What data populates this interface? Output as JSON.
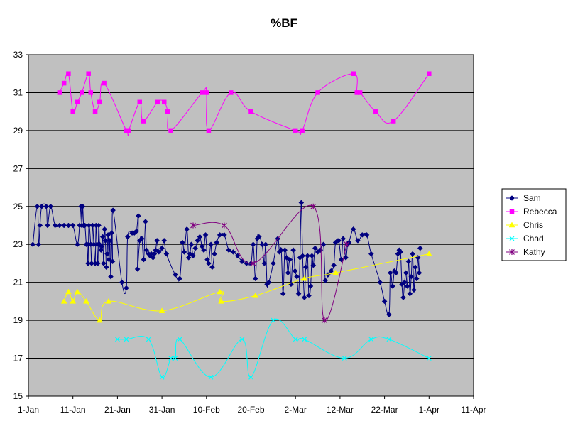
{
  "chart_data": {
    "type": "line",
    "title": "%BF",
    "xlabel": "",
    "ylabel": "",
    "x_axis": {
      "min": "1-Jan",
      "max": "11-Apr",
      "tick_labels": [
        "1-Jan",
        "11-Jan",
        "21-Jan",
        "31-Jan",
        "10-Feb",
        "20-Feb",
        "2-Mar",
        "12-Mar",
        "22-Mar",
        "1-Apr",
        "11-Apr"
      ],
      "tick_days": [
        0,
        10,
        20,
        30,
        40,
        50,
        60,
        70,
        80,
        90,
        100
      ]
    },
    "y_axis": {
      "min": 15,
      "max": 33,
      "ticks": [
        15,
        17,
        19,
        21,
        23,
        25,
        27,
        29,
        31,
        33
      ]
    },
    "grid": true,
    "plot_background": "#c0c0c0",
    "legend_position": "right",
    "series": [
      {
        "name": "Sam",
        "color": "#000080",
        "marker": "diamond",
        "points": [
          [
            1,
            23
          ],
          [
            2,
            25
          ],
          [
            2.3,
            23
          ],
          [
            2.6,
            24
          ],
          [
            3,
            25
          ],
          [
            4,
            25
          ],
          [
            4.3,
            24
          ],
          [
            5,
            25
          ],
          [
            6,
            24
          ],
          [
            7,
            24
          ],
          [
            8,
            24
          ],
          [
            9,
            24
          ],
          [
            10,
            24
          ],
          [
            11,
            23
          ],
          [
            11.5,
            24
          ],
          [
            11.8,
            25
          ],
          [
            12,
            24
          ],
          [
            12.2,
            25
          ],
          [
            12.4,
            24
          ],
          [
            12.7,
            24
          ],
          [
            13,
            23
          ],
          [
            13.2,
            23
          ],
          [
            13.4,
            22
          ],
          [
            13.6,
            24
          ],
          [
            14,
            23
          ],
          [
            14.2,
            22
          ],
          [
            14.4,
            24
          ],
          [
            14.7,
            23
          ],
          [
            15,
            22
          ],
          [
            15.2,
            24
          ],
          [
            15.4,
            23
          ],
          [
            15.6,
            22
          ],
          [
            15.8,
            24
          ],
          [
            16,
            23
          ],
          [
            16.3,
            22.7
          ],
          [
            16.5,
            22.9
          ],
          [
            16.7,
            23.4
          ],
          [
            16.9,
            22
          ],
          [
            17.1,
            23.8
          ],
          [
            17.3,
            23.2
          ],
          [
            17.5,
            21.8
          ],
          [
            17.7,
            22.5
          ],
          [
            17.9,
            23.5
          ],
          [
            18.1,
            22.2
          ],
          [
            18.3,
            23.2
          ],
          [
            18.5,
            21.3
          ],
          [
            18.7,
            23.6
          ],
          [
            18.9,
            22.1
          ],
          [
            19,
            24.8
          ],
          [
            21,
            21
          ],
          [
            22,
            20.7
          ],
          [
            22.3,
            23.4
          ],
          [
            23.3,
            23.6
          ],
          [
            23.8,
            23.6
          ],
          [
            24.3,
            23.7
          ],
          [
            24.7,
            24.5
          ],
          [
            24.5,
            21.7
          ],
          [
            25,
            23.2
          ],
          [
            25.5,
            23.3
          ],
          [
            25.9,
            22.2
          ],
          [
            26.3,
            24.2
          ],
          [
            26.5,
            22.7
          ],
          [
            27,
            22.5
          ],
          [
            27.3,
            22.4
          ],
          [
            27.6,
            22.5
          ],
          [
            28,
            22.3
          ],
          [
            28.3,
            22.5
          ],
          [
            28.6,
            22.7
          ],
          [
            28.9,
            23.2
          ],
          [
            29.3,
            22.6
          ],
          [
            30,
            22.8
          ],
          [
            30.5,
            23.2
          ],
          [
            31,
            22.5
          ],
          [
            33,
            21.4
          ],
          [
            34,
            21.2
          ],
          [
            34.6,
            23.1
          ],
          [
            35,
            22.6
          ],
          [
            35.6,
            23.8
          ],
          [
            36,
            22.3
          ],
          [
            36.3,
            22.5
          ],
          [
            36.6,
            23
          ],
          [
            37,
            22.4
          ],
          [
            37.5,
            22.8
          ],
          [
            38,
            23.2
          ],
          [
            38.5,
            23.4
          ],
          [
            39,
            22.9
          ],
          [
            39.4,
            22.7
          ],
          [
            39.8,
            23.5
          ],
          [
            40.2,
            22.2
          ],
          [
            40.5,
            22
          ],
          [
            41,
            23
          ],
          [
            41.3,
            21.8
          ],
          [
            41.8,
            22.5
          ],
          [
            42.3,
            23.1
          ],
          [
            43,
            23.5
          ],
          [
            44,
            23.5
          ],
          [
            45,
            22.7
          ],
          [
            46,
            22.6
          ],
          [
            47,
            22.4
          ],
          [
            48,
            22.1
          ],
          [
            49,
            22
          ],
          [
            50,
            22
          ],
          [
            50.5,
            23
          ],
          [
            51,
            21.2
          ],
          [
            51.4,
            23.3
          ],
          [
            51.8,
            23.4
          ],
          [
            52.5,
            23
          ],
          [
            53,
            22
          ],
          [
            53.3,
            23
          ],
          [
            53.6,
            20.9
          ],
          [
            54,
            21
          ],
          [
            55,
            22
          ],
          [
            56,
            23.3
          ],
          [
            56.4,
            22.6
          ],
          [
            56.8,
            22.7
          ],
          [
            57.2,
            20.4
          ],
          [
            57.6,
            22.7
          ],
          [
            58,
            22.3
          ],
          [
            58.3,
            21.5
          ],
          [
            58.7,
            22.2
          ],
          [
            59,
            20.9
          ],
          [
            59.5,
            22.7
          ],
          [
            59.9,
            21.6
          ],
          [
            60.3,
            21.3
          ],
          [
            60.7,
            20.4
          ],
          [
            61,
            22.3
          ],
          [
            61.3,
            25.2
          ],
          [
            61.6,
            22.4
          ],
          [
            62,
            20.2
          ],
          [
            62.3,
            21.8
          ],
          [
            62.7,
            22.4
          ],
          [
            63,
            20.3
          ],
          [
            63.4,
            20.8
          ],
          [
            63.7,
            22.4
          ],
          [
            64,
            21.9
          ],
          [
            64.4,
            22.8
          ],
          [
            65,
            22.6
          ],
          [
            65.6,
            22.7
          ],
          [
            66.3,
            23
          ],
          [
            66.7,
            21.1
          ],
          [
            67.3,
            21.4
          ],
          [
            68,
            21.6
          ],
          [
            68.6,
            21.9
          ],
          [
            69,
            23.1
          ],
          [
            69.7,
            23.2
          ],
          [
            70.3,
            22.2
          ],
          [
            70.7,
            23.3
          ],
          [
            71.3,
            22.3
          ],
          [
            71.7,
            23
          ],
          [
            72,
            23.1
          ],
          [
            73,
            23.8
          ],
          [
            74,
            23.2
          ],
          [
            75,
            23.5
          ],
          [
            76,
            23.5
          ],
          [
            77,
            22.5
          ],
          [
            79,
            21
          ],
          [
            80,
            20
          ],
          [
            81,
            19.3
          ],
          [
            81.3,
            21.5
          ],
          [
            81.8,
            20.8
          ],
          [
            82.2,
            21.6
          ],
          [
            82.6,
            21.5
          ],
          [
            83,
            22.5
          ],
          [
            83.3,
            22.7
          ],
          [
            83.6,
            22.6
          ],
          [
            83.9,
            20.9
          ],
          [
            84.2,
            20.2
          ],
          [
            84.5,
            21
          ],
          [
            84.8,
            21.5
          ],
          [
            85.1,
            20.8
          ],
          [
            85.4,
            22.1
          ],
          [
            85.7,
            20.4
          ],
          [
            86,
            21.3
          ],
          [
            86.3,
            22.5
          ],
          [
            86.6,
            20.6
          ],
          [
            86.9,
            21.8
          ],
          [
            87.2,
            21.2
          ],
          [
            87.5,
            22.3
          ],
          [
            87.8,
            21.5
          ],
          [
            88,
            22.8
          ]
        ]
      },
      {
        "name": "Rebecca",
        "color": "#ff00ff",
        "marker": "square",
        "points": [
          [
            7,
            31
          ],
          [
            8,
            31.5
          ],
          [
            9,
            32
          ],
          [
            10,
            30
          ],
          [
            11,
            30.5
          ],
          [
            12,
            31
          ],
          [
            13.5,
            32
          ],
          [
            14,
            31
          ],
          [
            15,
            30
          ],
          [
            16,
            30.5
          ],
          [
            17,
            31.5
          ],
          [
            22,
            29
          ],
          [
            22.5,
            29
          ],
          [
            25,
            30.5
          ],
          [
            25.8,
            29.5
          ],
          [
            29,
            30.5
          ],
          [
            30.5,
            30.5
          ],
          [
            31.3,
            30
          ],
          [
            32,
            29
          ],
          [
            39,
            31
          ],
          [
            40,
            31
          ],
          [
            40.5,
            29
          ],
          [
            45.5,
            31
          ],
          [
            50,
            30
          ],
          [
            60,
            29
          ],
          [
            61.5,
            29
          ],
          [
            65,
            31
          ],
          [
            73,
            32
          ],
          [
            73.8,
            31
          ],
          [
            74.5,
            31
          ],
          [
            78,
            30
          ],
          [
            82,
            29.5
          ],
          [
            90,
            32
          ]
        ]
      },
      {
        "name": "Chris",
        "color": "#ffff00",
        "marker": "triangle",
        "points": [
          [
            8,
            20
          ],
          [
            9,
            20.5
          ],
          [
            10,
            20
          ],
          [
            11,
            20.5
          ],
          [
            13,
            20
          ],
          [
            16,
            19
          ],
          [
            18,
            20
          ],
          [
            30,
            19.5
          ],
          [
            43,
            20.5
          ],
          [
            43.3,
            20
          ],
          [
            51,
            20.3
          ],
          [
            62,
            21.2
          ],
          [
            69,
            21.5
          ],
          [
            90,
            22.5
          ]
        ]
      },
      {
        "name": "Chad",
        "color": "#00ffff",
        "marker": "x",
        "points": [
          [
            20,
            18
          ],
          [
            22,
            18
          ],
          [
            27,
            18
          ],
          [
            30,
            16
          ],
          [
            32,
            17
          ],
          [
            33,
            17
          ],
          [
            34,
            18
          ],
          [
            41,
            16
          ],
          [
            48,
            18
          ],
          [
            50,
            16
          ],
          [
            55,
            19
          ],
          [
            60,
            18
          ],
          [
            62,
            18
          ],
          [
            71,
            17
          ],
          [
            77,
            18
          ],
          [
            81,
            18
          ],
          [
            90,
            17
          ]
        ]
      },
      {
        "name": "Kathy",
        "color": "#800080",
        "marker": "star",
        "points": [
          [
            37,
            24
          ],
          [
            44,
            24
          ],
          [
            50.5,
            22
          ],
          [
            64,
            25
          ],
          [
            66.5,
            19
          ],
          [
            71.5,
            23
          ]
        ]
      }
    ]
  }
}
